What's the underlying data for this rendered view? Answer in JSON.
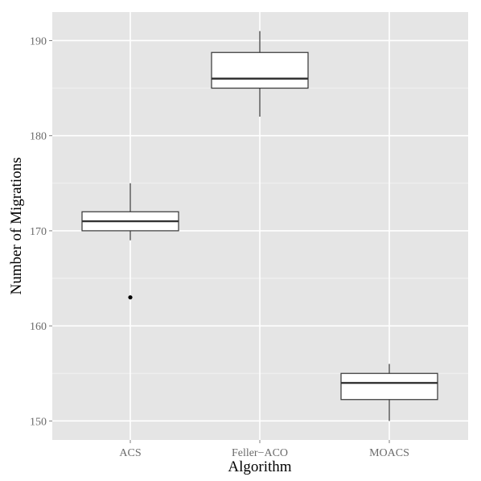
{
  "chart_data": {
    "type": "boxplot",
    "xlabel": "Algorithm",
    "ylabel": "Number of Migrations",
    "categories": [
      "ACS",
      "Feller−ACO",
      "MOACS"
    ],
    "ylim": [
      148,
      193
    ],
    "yticks": [
      150,
      160,
      170,
      180,
      190
    ],
    "ytick_labels": [
      "150",
      "160",
      "170",
      "180",
      "190"
    ],
    "grid": true,
    "legend": "none",
    "boxes": [
      {
        "category": "ACS",
        "whisker_low": 169,
        "q1": 170,
        "median": 171,
        "q3": 172,
        "whisker_high": 175,
        "outliers": [
          163
        ]
      },
      {
        "category": "Feller−ACO",
        "whisker_low": 182,
        "q1": 185,
        "median": 186,
        "q3": 188.75,
        "whisker_high": 191,
        "outliers": []
      },
      {
        "category": "MOACS",
        "whisker_low": 150,
        "q1": 152.25,
        "median": 154,
        "q3": 155,
        "whisker_high": 156,
        "outliers": []
      }
    ],
    "colors": {
      "panel": "#e5e5e5",
      "grid_major": "#ffffff",
      "grid_minor": "#f2f2f2",
      "box_fill": "#ffffff",
      "box_line": "#333333",
      "tick_text": "#6b6b6b"
    }
  }
}
